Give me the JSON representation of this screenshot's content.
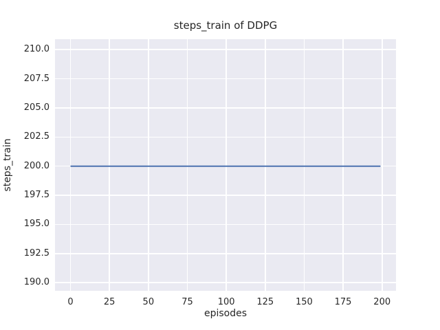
{
  "chart_data": {
    "type": "line",
    "title": "steps_train of DDPG",
    "xlabel": "episodes",
    "ylabel": "steps_train",
    "x_ticks": [
      0,
      25,
      50,
      75,
      100,
      125,
      150,
      175,
      200
    ],
    "x_tick_labels": [
      "0",
      "25",
      "50",
      "75",
      "100",
      "125",
      "150",
      "175",
      "200"
    ],
    "y_ticks": [
      190.0,
      192.5,
      195.0,
      197.5,
      200.0,
      202.5,
      205.0,
      207.5,
      210.0
    ],
    "y_tick_labels": [
      "190.0",
      "192.5",
      "195.0",
      "197.5",
      "200.0",
      "202.5",
      "205.0",
      "207.5",
      "210.0"
    ],
    "xlim": [
      -9.95,
      208.95
    ],
    "ylim": [
      189.3,
      210.9
    ],
    "grid": true,
    "legend": "none",
    "series": [
      {
        "name": "steps_train",
        "color": "#4C72B0",
        "x": [
          0,
          199
        ],
        "y": [
          200,
          200
        ],
        "summary": "constant flat line at steps_train = 200 for every episode from 0 to 199"
      }
    ],
    "style": {
      "figure_bg": "#FFFFFF",
      "axes_bg": "#EAEAF2",
      "grid_color": "#FFFFFF",
      "text_color": "#262626",
      "line_width": 2
    }
  }
}
